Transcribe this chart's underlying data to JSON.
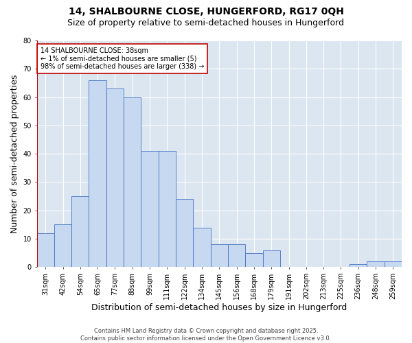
{
  "title1": "14, SHALBOURNE CLOSE, HUNGERFORD, RG17 0QH",
  "title2": "Size of property relative to semi-detached houses in Hungerford",
  "xlabel": "Distribution of semi-detached houses by size in Hungerford",
  "ylabel": "Number of semi-detached properties",
  "categories": [
    "31sqm",
    "42sqm",
    "54sqm",
    "65sqm",
    "77sqm",
    "88sqm",
    "99sqm",
    "111sqm",
    "122sqm",
    "134sqm",
    "145sqm",
    "156sqm",
    "168sqm",
    "179sqm",
    "191sqm",
    "202sqm",
    "213sqm",
    "225sqm",
    "236sqm",
    "248sqm",
    "259sqm"
  ],
  "values": [
    12,
    15,
    25,
    66,
    63,
    60,
    41,
    41,
    24,
    14,
    8,
    8,
    5,
    6,
    0,
    0,
    0,
    0,
    1,
    2,
    2
  ],
  "bar_color": "#c6d9f0",
  "bar_edge_color": "#4472c4",
  "highlight_color": "#c00000",
  "annotation_line1": "14 SHALBOURNE CLOSE: 38sqm",
  "annotation_line2": "← 1% of semi-detached houses are smaller (5)",
  "annotation_line3": "98% of semi-detached houses are larger (338) →",
  "annotation_box_color": "#ffffff",
  "annotation_border_color": "#c00000",
  "ylim": [
    0,
    80
  ],
  "yticks": [
    0,
    10,
    20,
    30,
    40,
    50,
    60,
    70,
    80
  ],
  "footer": "Contains HM Land Registry data © Crown copyright and database right 2025.\nContains public sector information licensed under the Open Government Licence v3.0.",
  "fig_bg_color": "#ffffff",
  "plot_bg_color": "#dce6f1",
  "grid_color": "#ffffff",
  "title_fontsize": 10,
  "subtitle_fontsize": 9,
  "axis_label_fontsize": 9,
  "tick_fontsize": 7,
  "annotation_fontsize": 7,
  "footer_fontsize": 6
}
